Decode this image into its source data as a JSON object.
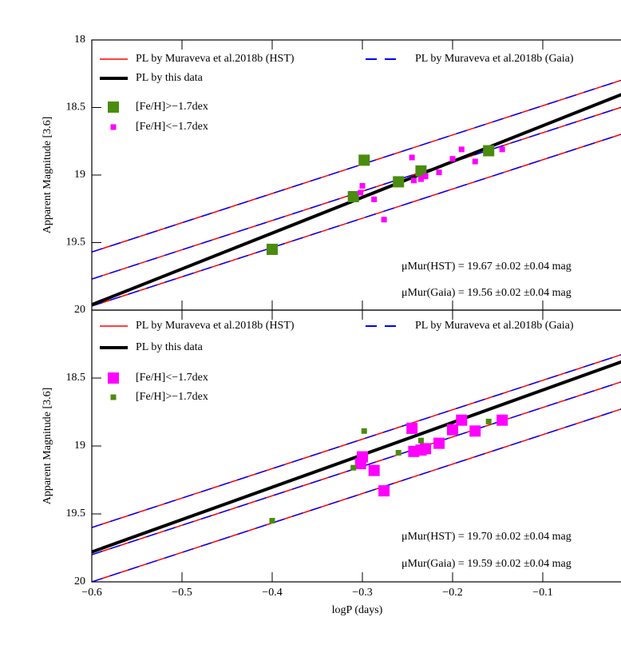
{
  "chart_data": [
    {
      "type": "scatter",
      "ylabel": "Apparent Magnitude [3.6]",
      "xlim": [
        -0.6,
        0
      ],
      "ylim": [
        20,
        18
      ],
      "xticks": [
        -0.6,
        -0.5,
        -0.4,
        -0.3,
        -0.2,
        -0.1
      ],
      "yticks": [
        18,
        18.5,
        19,
        19.5,
        20
      ],
      "annotations": [
        "μMur(HST) = 19.67 ±0.02 ±0.04 mag",
        "μMur(Gaia) = 19.56 ±0.02 ±0.04 mag"
      ],
      "series": [
        {
          "name": "PL by Muraveva et al.2018b (HST)",
          "color": "#ff0000",
          "style": "line",
          "lines": [
            {
              "x": [
                -0.6,
                0
              ],
              "values": [
                19.57,
                18.27
              ]
            },
            {
              "x": [
                -0.6,
                0
              ],
              "values": [
                19.77,
                18.47
              ]
            },
            {
              "x": [
                -0.6,
                0
              ],
              "values": [
                19.97,
                18.67
              ]
            }
          ]
        },
        {
          "name": "PL by Muraveva et al.2018b (Gaia)",
          "color": "#0000ff",
          "style": "dashed",
          "lines": [
            {
              "x": [
                -0.6,
                0
              ],
              "values": [
                19.57,
                18.27
              ]
            },
            {
              "x": [
                -0.6,
                0
              ],
              "values": [
                19.77,
                18.47
              ]
            },
            {
              "x": [
                -0.6,
                0
              ],
              "values": [
                19.97,
                18.67
              ]
            }
          ]
        },
        {
          "name": "PL by this data",
          "color": "#000000",
          "style": "thick",
          "lines": [
            {
              "x": [
                -0.6,
                0
              ],
              "values": [
                19.96,
                18.37
              ]
            }
          ]
        },
        {
          "name": "[Fe/H]>−1.7dex",
          "color": "#4a8c0f",
          "style": "square",
          "x": [
            -0.31,
            -0.298,
            -0.26,
            -0.235,
            -0.16,
            -0.4
          ],
          "values": [
            19.16,
            18.89,
            19.05,
            18.97,
            18.82,
            19.55
          ]
        },
        {
          "name": "[Fe/H]<−1.7dex",
          "color": "#ff00ff",
          "style": "square",
          "x": [
            -0.302,
            -0.3,
            -0.287,
            -0.276,
            -0.245,
            -0.243,
            -0.235,
            -0.23,
            -0.215,
            -0.2,
            -0.19,
            -0.175,
            -0.145
          ],
          "values": [
            19.13,
            19.08,
            19.18,
            19.33,
            18.87,
            19.04,
            19.03,
            19.01,
            18.98,
            18.88,
            18.81,
            18.9,
            18.81
          ]
        }
      ]
    },
    {
      "type": "scatter",
      "ylabel": "Apparent Magnitude [3.6]",
      "xlabel": "logP (days)",
      "xlim": [
        -0.6,
        0
      ],
      "ylim": [
        20,
        18
      ],
      "xticks": [
        {
          "value": -0.6,
          "label": "−0.6"
        },
        {
          "value": -0.5,
          "label": "−0.5"
        },
        {
          "value": -0.4,
          "label": "−0.4"
        },
        {
          "value": -0.3,
          "label": "−0.3"
        },
        {
          "value": -0.2,
          "label": "−0.2"
        },
        {
          "value": -0.1,
          "label": "−0.1"
        }
      ],
      "yticks": [
        18.5,
        19,
        19.5,
        20
      ],
      "annotations": [
        "μMur(HST) = 19.70 ±0.02 ±0.04 mag",
        "μMur(Gaia) = 19.59 ±0.02 ±0.04 mag"
      ],
      "series": [
        {
          "name": "PL by Muraveva et al.2018b (HST)",
          "color": "#ff0000",
          "style": "line",
          "lines": [
            {
              "x": [
                -0.6,
                0
              ],
              "values": [
                19.6,
                18.3
              ]
            },
            {
              "x": [
                -0.6,
                0
              ],
              "values": [
                19.8,
                18.5
              ]
            },
            {
              "x": [
                -0.6,
                0
              ],
              "values": [
                20.0,
                18.7
              ]
            }
          ]
        },
        {
          "name": "PL by Muraveva et al.2018b (Gaia)",
          "color": "#0000ff",
          "style": "dashed",
          "lines": [
            {
              "x": [
                -0.6,
                0
              ],
              "values": [
                19.6,
                18.3
              ]
            },
            {
              "x": [
                -0.6,
                0
              ],
              "values": [
                19.8,
                18.5
              ]
            },
            {
              "x": [
                -0.6,
                0
              ],
              "values": [
                20.0,
                18.7
              ]
            }
          ]
        },
        {
          "name": "PL by this data",
          "color": "#000000",
          "style": "thick",
          "lines": [
            {
              "x": [
                -0.6,
                0
              ],
              "values": [
                19.78,
                18.35
              ]
            }
          ]
        },
        {
          "name": "[Fe/H]<−1.7dex",
          "color": "#ff00ff",
          "style": "square",
          "x": [
            -0.302,
            -0.3,
            -0.287,
            -0.276,
            -0.245,
            -0.243,
            -0.235,
            -0.23,
            -0.215,
            -0.2,
            -0.19,
            -0.175,
            -0.145
          ],
          "values": [
            19.13,
            19.08,
            19.18,
            19.33,
            18.87,
            19.04,
            19.03,
            19.02,
            18.98,
            18.88,
            18.81,
            18.89,
            18.81
          ]
        },
        {
          "name": "[Fe/H]>−1.7dex",
          "color": "#4a8c0f",
          "style": "square",
          "x": [
            -0.31,
            -0.298,
            -0.26,
            -0.235,
            -0.16,
            -0.4
          ],
          "values": [
            19.16,
            18.89,
            19.05,
            18.96,
            18.82,
            19.55
          ]
        }
      ]
    }
  ]
}
